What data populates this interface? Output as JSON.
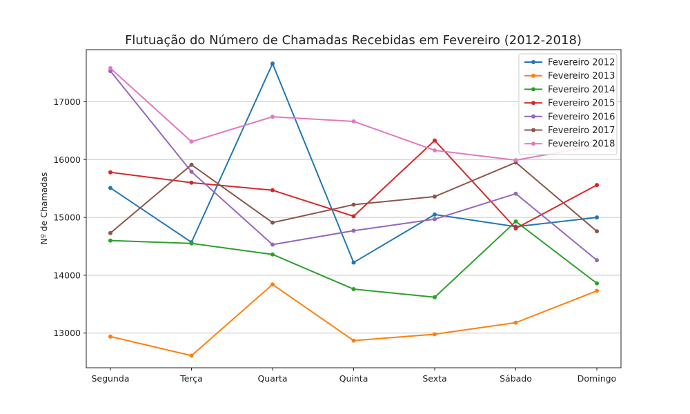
{
  "chart_data": {
    "type": "line",
    "title": "Flutuação do Número de Chamadas Recebidas em Fevereiro (2012-2018)",
    "xlabel": "",
    "ylabel": "Nº de Chamadas",
    "categories": [
      "Segunda",
      "Terça",
      "Quarta",
      "Quinta",
      "Sexta",
      "Sábado",
      "Domingo"
    ],
    "ylim": [
      12400,
      17900
    ],
    "yticks": [
      13000,
      14000,
      15000,
      16000,
      17000
    ],
    "grid": "horizontal",
    "legend_position": "top-right",
    "series": [
      {
        "name": "Fevereiro 2012",
        "color": "#1f77b4",
        "values": [
          15510,
          14570,
          17660,
          14220,
          15050,
          14840,
          15000
        ]
      },
      {
        "name": "Fevereiro 2013",
        "color": "#ff7f0e",
        "values": [
          12940,
          12610,
          13840,
          12870,
          12980,
          13180,
          13730
        ]
      },
      {
        "name": "Fevereiro 2014",
        "color": "#2ca02c",
        "values": [
          14600,
          14550,
          14360,
          13760,
          13620,
          14930,
          13860
        ]
      },
      {
        "name": "Fevereiro 2015",
        "color": "#d62728",
        "values": [
          15780,
          15600,
          15470,
          15020,
          16330,
          14810,
          15560
        ]
      },
      {
        "name": "Fevereiro 2016",
        "color": "#9467bd",
        "values": [
          17530,
          15790,
          14530,
          14770,
          14970,
          15410,
          14260
        ]
      },
      {
        "name": "Fevereiro 2017",
        "color": "#8c564b",
        "values": [
          14730,
          15910,
          14910,
          15220,
          15360,
          15950,
          14760
        ]
      },
      {
        "name": "Fevereiro 2018",
        "color": "#e377c2",
        "values": [
          17580,
          16310,
          16740,
          16660,
          16160,
          15990,
          16240
        ]
      }
    ]
  }
}
